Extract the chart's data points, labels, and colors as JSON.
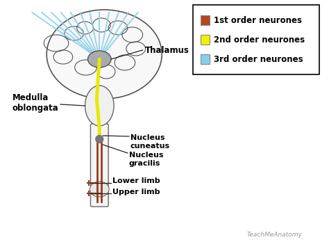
{
  "background_color": "#ffffff",
  "legend_items": [
    {
      "label": "1st order neurones",
      "color": "#b5451b"
    },
    {
      "label": "2nd order neurones",
      "color": "#f0f000"
    },
    {
      "label": "3rd order neurones",
      "color": "#87ceeb"
    }
  ],
  "labels": {
    "thalamus": "Thalamus",
    "medulla": "Medulla\noblongata",
    "nucleus_cuneatus": "Nucleus\ncuneatus",
    "nucleus_gracilis": "Nucleus\ngracilis",
    "lower_limb": "Lower limb",
    "upper_limb": "Upper limb",
    "copyright": "TeachMeAnatomy"
  },
  "colors": {
    "brain_fill": "#f8f8f8",
    "brain_outline": "#555555",
    "thalamus_fill": "#aaaaaa",
    "cord_fill": "#f5f5f5",
    "first_order": "#9b3a1a",
    "second_order": "#e8e800",
    "third_order": "#87ceeb",
    "node_fill": "#888888",
    "text": "#000000",
    "ann_line": "#222222"
  }
}
